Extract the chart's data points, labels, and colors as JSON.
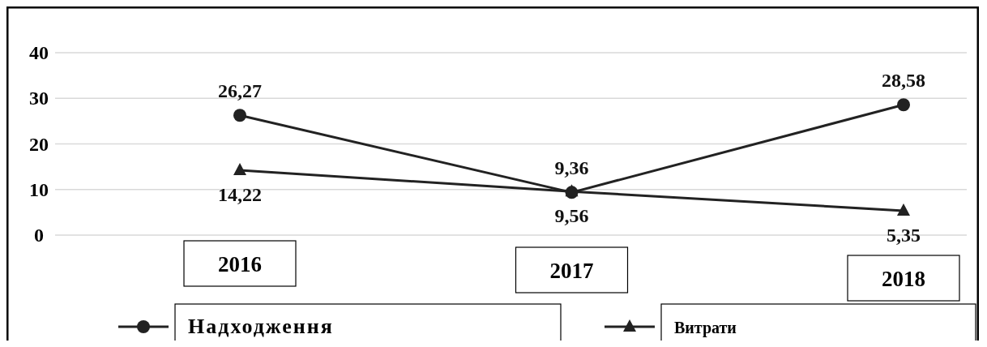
{
  "chart_data": {
    "type": "line",
    "categories": [
      "2016",
      "2017",
      "2018"
    ],
    "series": [
      {
        "name": "Надходження",
        "color": "#222222",
        "values": [
          26.27,
          9.36,
          28.58
        ],
        "value_labels": [
          "26,27",
          "9,36",
          "28,58"
        ],
        "marker": "circle"
      },
      {
        "name": "Витрати",
        "color": "#222222",
        "values": [
          14.22,
          9.56,
          5.35
        ],
        "value_labels": [
          "14,22",
          "9,56",
          "5,35"
        ],
        "marker": "triangle"
      }
    ],
    "ylim": [
      0,
      40
    ],
    "yticks": [
      0,
      10,
      20,
      30,
      40
    ],
    "grid": "y",
    "legend": "bottom",
    "line_style": "solid"
  }
}
